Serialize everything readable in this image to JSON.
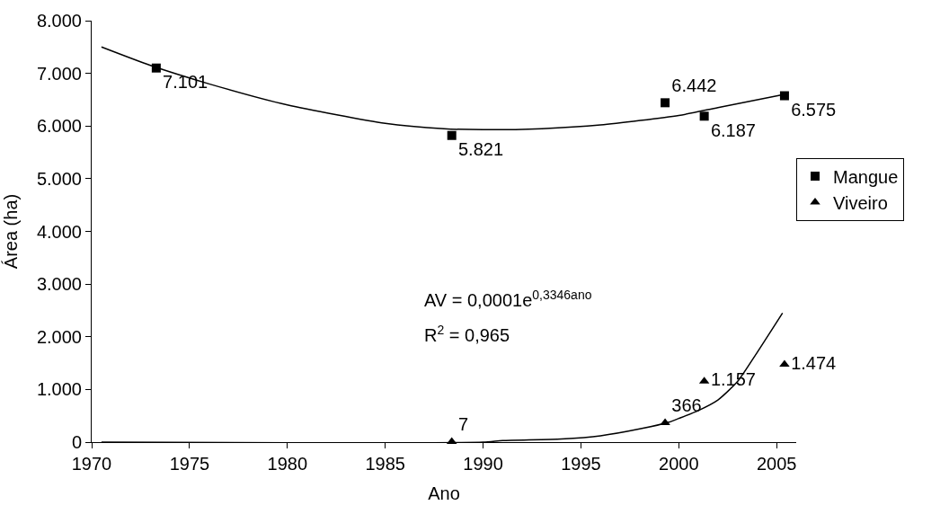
{
  "chart_data": {
    "type": "scatter",
    "xlabel": "Ano",
    "ylabel": "Área (ha)",
    "xlim": [
      1970,
      2006
    ],
    "xticks": [
      1970,
      1975,
      1980,
      1985,
      1990,
      1995,
      2000,
      2005
    ],
    "ylim": [
      0,
      8000
    ],
    "yticks": [
      {
        "value": 0,
        "label": "0"
      },
      {
        "value": 1000,
        "label": "1.000"
      },
      {
        "value": 2000,
        "label": "2.000"
      },
      {
        "value": 3000,
        "label": "3.000"
      },
      {
        "value": 4000,
        "label": "4.000"
      },
      {
        "value": 5000,
        "label": "5.000"
      },
      {
        "value": 6000,
        "label": "6.000"
      },
      {
        "value": 7000,
        "label": "7.000"
      },
      {
        "value": 8000,
        "label": "8.000"
      }
    ],
    "legend": "right",
    "series": [
      {
        "name": "Mangue",
        "color": "#000000",
        "marker": "square",
        "x": [
          1973.3,
          1988.4,
          1999.3,
          2001.3,
          2005.4
        ],
        "values": [
          7101,
          5821,
          6442,
          6187,
          6575
        ],
        "value_labels": [
          "7.101",
          "5.821",
          "6.442",
          "6.187",
          "6.575"
        ]
      },
      {
        "name": "Viveiro",
        "color": "#000000",
        "marker": "triangle",
        "x": [
          1988.4,
          1999.3,
          2001.3,
          2005.4
        ],
        "values": [
          7,
          366,
          1157,
          1474
        ],
        "value_labels": [
          "7",
          "366",
          "1.157",
          "1.474"
        ]
      },
      {
        "type": "line",
        "color": "#000000",
        "x": [
          1970.5,
          1973,
          1976,
          1980,
          1985,
          1988,
          1990,
          1993,
          1996,
          2000,
          2002,
          2005.4
        ],
        "values": [
          7500,
          7150,
          6800,
          6400,
          6050,
          5950,
          5930,
          5950,
          6020,
          6200,
          6350,
          6600
        ]
      },
      {
        "type": "line",
        "color": "#000000",
        "x": [
          1970.5,
          1990,
          1991,
          1994,
          1996,
          1998,
          1999.5,
          2000,
          2001,
          2002,
          2003,
          2004,
          2005.3
        ],
        "values": [
          0,
          0,
          30,
          60,
          120,
          250,
          380,
          450,
          600,
          800,
          1150,
          1700,
          2450
        ]
      }
    ],
    "annotations": [
      "AV = 0,0001e$^{0,3346ano}$",
      "R$^{2}$ = 0,965"
    ]
  }
}
